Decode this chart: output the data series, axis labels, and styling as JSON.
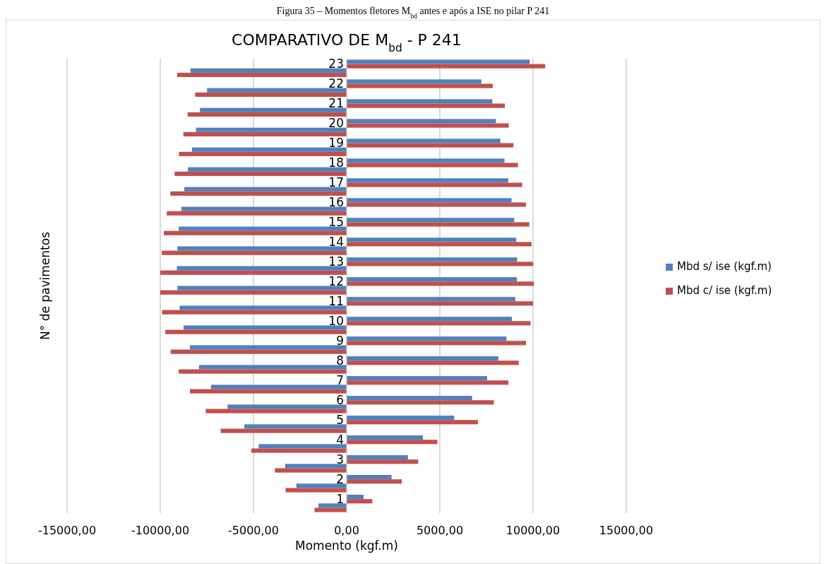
{
  "chart_data": {
    "type": "bar",
    "orientation": "horizontal",
    "title": "COMPARATIVO DE M$_{bd}$ - P 241",
    "xlabel": "Momento (kgf.m)",
    "ylabel": "N° de pavimentos",
    "annotations": [
      "Figura 35 – Momentos fletores M$_{bd}$ antes e após a ISE no pilar P 241"
    ],
    "categories": [
      "23",
      "22",
      "21",
      "20",
      "19",
      "18",
      "17",
      "16",
      "15",
      "14",
      "13",
      "12",
      "11",
      "10",
      "9",
      "8",
      "7",
      "6",
      "5",
      "4",
      "3",
      "2",
      "1"
    ],
    "series": [
      {
        "name": "Mbd s/ ise (kgf.m)",
        "color": "#4f81bd",
        "values": [
          9820,
          7230,
          7820,
          8010,
          8250,
          8470,
          8670,
          8850,
          8990,
          9100,
          9150,
          9140,
          9050,
          8870,
          8580,
          8140,
          7540,
          6730,
          5770,
          4090,
          3290,
          2410,
          910
        ]
      },
      {
        "name": "Mbd c/ ise (kgf.m)",
        "color": "#c0504d",
        "values": [
          10650,
          7840,
          8490,
          8700,
          8950,
          9190,
          9420,
          9620,
          9800,
          9920,
          10010,
          10050,
          10000,
          9870,
          9620,
          9230,
          8680,
          7900,
          7040,
          4870,
          3840,
          2960,
          1380
        ]
      },
      {
        "color": "#4f81bd",
        "values": [
          -8380,
          -7490,
          -7870,
          -8080,
          -8300,
          -8520,
          -8710,
          -8870,
          -9010,
          -9080,
          -9110,
          -9080,
          -8960,
          -8750,
          -8410,
          -7920,
          -7280,
          -6390,
          -5490,
          -4720,
          -3300,
          -2700,
          -1510
        ]
      },
      {
        "color": "#c0504d",
        "values": [
          -9090,
          -8130,
          -8530,
          -8760,
          -9000,
          -9230,
          -9460,
          -9650,
          -9810,
          -9920,
          -10000,
          -10000,
          -9900,
          -9730,
          -9440,
          -9010,
          -8410,
          -7560,
          -6760,
          -5110,
          -3850,
          -3280,
          -1720
        ]
      }
    ],
    "xlim": [
      -15000,
      15000
    ],
    "xticks": [
      {
        "value": -15000,
        "label": "-15000,00"
      },
      {
        "value": -10000,
        "label": "-10000,00"
      },
      {
        "value": -5000,
        "label": "-5000,00"
      },
      {
        "value": 0,
        "label": "0,00"
      },
      {
        "value": 5000,
        "label": "5000,00"
      },
      {
        "value": 10000,
        "label": "10000,00"
      },
      {
        "value": 15000,
        "label": "15000,00"
      }
    ],
    "grid": "x",
    "legend": "right"
  }
}
